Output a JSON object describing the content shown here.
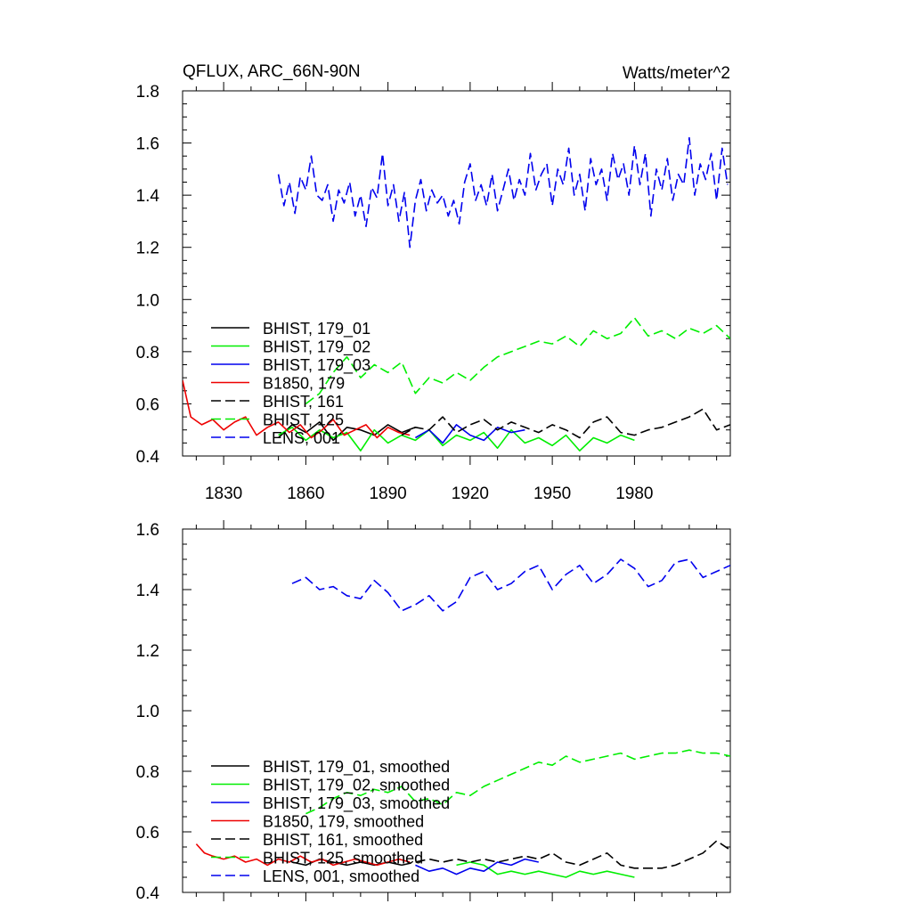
{
  "chart_data": [
    {
      "type": "line",
      "title": "QFLUX, ARC_66N-90N",
      "units": "Watts/meter^2",
      "xlim": [
        1815,
        2015
      ],
      "ylim": [
        0.4,
        1.8
      ],
      "xticks": [
        1830,
        1860,
        1890,
        1920,
        1950,
        1980
      ],
      "yticks": [
        0.4,
        0.6,
        0.8,
        1.0,
        1.2,
        1.4,
        1.6,
        1.8
      ],
      "ytick_labels": [
        "0.4",
        "0.6",
        "0.8",
        "1.0",
        "1.2",
        "1.4",
        "1.6",
        "1.8"
      ],
      "legend_position": "bottom-left",
      "series": [
        {
          "name": "BHIST, 179_01",
          "color": "#000000",
          "dash": "solid",
          "x": [
            1850,
            1855,
            1860,
            1865,
            1870,
            1875,
            1880,
            1885,
            1890,
            1895,
            1900
          ],
          "y": [
            0.47,
            0.52,
            0.49,
            0.53,
            0.46,
            0.51,
            0.5,
            0.48,
            0.52,
            0.49,
            0.51
          ]
        },
        {
          "name": "BHIST, 179_02",
          "color": "#00ee00",
          "dash": "solid",
          "x": [
            1850,
            1855,
            1860,
            1865,
            1870,
            1875,
            1880,
            1885,
            1890,
            1895,
            1900,
            1905,
            1910,
            1915,
            1920,
            1925,
            1930,
            1935,
            1940,
            1945,
            1950,
            1955,
            1960,
            1965,
            1970,
            1975,
            1980
          ],
          "y": [
            0.48,
            0.51,
            0.46,
            0.5,
            0.47,
            0.49,
            0.42,
            0.5,
            0.45,
            0.48,
            0.46,
            0.5,
            0.44,
            0.48,
            0.46,
            0.49,
            0.43,
            0.5,
            0.45,
            0.47,
            0.44,
            0.48,
            0.42,
            0.47,
            0.45,
            0.48,
            0.46
          ]
        },
        {
          "name": "BHIST, 179_03",
          "color": "#0000ee",
          "dash": "solid",
          "x": [
            1900,
            1905,
            1910,
            1915,
            1920,
            1925,
            1930,
            1935,
            1940
          ],
          "y": [
            0.47,
            0.5,
            0.45,
            0.52,
            0.48,
            0.46,
            0.51,
            0.49,
            0.5
          ]
        },
        {
          "name": "B1850, 179",
          "color": "#ee0000",
          "dash": "solid",
          "x": [
            1815,
            1818,
            1822,
            1826,
            1830,
            1834,
            1838,
            1842,
            1846,
            1850,
            1854,
            1858,
            1862,
            1866,
            1870,
            1874,
            1878,
            1882,
            1886,
            1890,
            1894,
            1898
          ],
          "y": [
            0.69,
            0.55,
            0.52,
            0.54,
            0.5,
            0.53,
            0.55,
            0.48,
            0.51,
            0.53,
            0.49,
            0.52,
            0.47,
            0.5,
            0.54,
            0.48,
            0.5,
            0.52,
            0.47,
            0.51,
            0.49,
            0.48
          ]
        },
        {
          "name": "BHIST, 161",
          "color": "#000000",
          "dash": "dashed",
          "x": [
            1895,
            1900,
            1905,
            1910,
            1915,
            1920,
            1925,
            1930,
            1935,
            1940,
            1945,
            1950,
            1955,
            1960,
            1965,
            1970,
            1975,
            1980,
            1985,
            1990,
            1995,
            2000,
            2005,
            2010,
            2015
          ],
          "y": [
            0.48,
            0.51,
            0.5,
            0.55,
            0.49,
            0.52,
            0.54,
            0.5,
            0.53,
            0.51,
            0.49,
            0.52,
            0.5,
            0.47,
            0.53,
            0.55,
            0.49,
            0.48,
            0.5,
            0.51,
            0.53,
            0.55,
            0.58,
            0.5,
            0.52
          ]
        },
        {
          "name": "BHIST, 125",
          "color": "#00ee00",
          "dash": "dashed",
          "x": [
            1860,
            1865,
            1870,
            1875,
            1880,
            1885,
            1890,
            1895,
            1900,
            1905,
            1910,
            1915,
            1920,
            1925,
            1930,
            1935,
            1940,
            1945,
            1950,
            1955,
            1960,
            1965,
            1970,
            1975,
            1980,
            1985,
            1990,
            1995,
            2000,
            2005,
            2010,
            2015
          ],
          "y": [
            0.6,
            0.64,
            0.72,
            0.78,
            0.7,
            0.75,
            0.72,
            0.76,
            0.64,
            0.7,
            0.68,
            0.72,
            0.69,
            0.74,
            0.78,
            0.8,
            0.82,
            0.84,
            0.83,
            0.86,
            0.82,
            0.88,
            0.85,
            0.87,
            0.93,
            0.86,
            0.88,
            0.85,
            0.89,
            0.87,
            0.9,
            0.85
          ]
        },
        {
          "name": "LENS, 001",
          "color": "#0000ee",
          "dash": "dashed",
          "x": [
            1850,
            1852,
            1854,
            1856,
            1858,
            1860,
            1862,
            1864,
            1866,
            1868,
            1870,
            1872,
            1874,
            1876,
            1878,
            1880,
            1882,
            1884,
            1886,
            1888,
            1890,
            1892,
            1894,
            1896,
            1898,
            1900,
            1902,
            1904,
            1906,
            1908,
            1910,
            1912,
            1914,
            1916,
            1918,
            1920,
            1922,
            1924,
            1926,
            1928,
            1930,
            1932,
            1934,
            1936,
            1938,
            1940,
            1942,
            1944,
            1946,
            1948,
            1950,
            1952,
            1954,
            1956,
            1958,
            1960,
            1962,
            1964,
            1966,
            1968,
            1970,
            1972,
            1974,
            1976,
            1978,
            1980,
            1982,
            1984,
            1986,
            1988,
            1990,
            1992,
            1994,
            1996,
            1998,
            2000,
            2002,
            2004,
            2006,
            2008,
            2010,
            2012,
            2014
          ],
          "y": [
            1.48,
            1.36,
            1.45,
            1.33,
            1.47,
            1.42,
            1.55,
            1.4,
            1.38,
            1.44,
            1.3,
            1.42,
            1.37,
            1.45,
            1.32,
            1.4,
            1.28,
            1.43,
            1.39,
            1.56,
            1.36,
            1.44,
            1.3,
            1.41,
            1.2,
            1.38,
            1.46,
            1.34,
            1.42,
            1.37,
            1.4,
            1.32,
            1.38,
            1.29,
            1.45,
            1.52,
            1.38,
            1.44,
            1.36,
            1.48,
            1.34,
            1.42,
            1.5,
            1.38,
            1.46,
            1.4,
            1.56,
            1.42,
            1.48,
            1.52,
            1.36,
            1.5,
            1.44,
            1.58,
            1.4,
            1.48,
            1.34,
            1.54,
            1.44,
            1.5,
            1.38,
            1.56,
            1.46,
            1.52,
            1.4,
            1.59,
            1.44,
            1.56,
            1.32,
            1.5,
            1.42,
            1.54,
            1.38,
            1.48,
            1.44,
            1.62,
            1.4,
            1.52,
            1.46,
            1.56,
            1.38,
            1.58,
            1.44
          ]
        }
      ]
    },
    {
      "type": "line",
      "xlim": [
        1815,
        2015
      ],
      "ylim": [
        0.4,
        1.6
      ],
      "yticks": [
        0.4,
        0.6,
        0.8,
        1.0,
        1.2,
        1.4,
        1.6
      ],
      "ytick_labels": [
        "0.4",
        "0.6",
        "0.8",
        "1.0",
        "1.2",
        "1.4",
        "1.6"
      ],
      "legend_position": "bottom-left",
      "series": [
        {
          "name": "BHIST, 179_01, smoothed",
          "color": "#000000",
          "dash": "solid",
          "x": [
            1855,
            1860,
            1865,
            1870,
            1875,
            1880,
            1885,
            1890,
            1895
          ],
          "y": [
            0.5,
            0.49,
            0.51,
            0.5,
            0.49,
            0.5,
            0.49,
            0.5,
            0.49
          ]
        },
        {
          "name": "BHIST, 179_02, smoothed",
          "color": "#00ee00",
          "dash": "solid",
          "x": [
            1915,
            1920,
            1925,
            1930,
            1935,
            1940,
            1945,
            1950,
            1955,
            1960,
            1965,
            1970,
            1975,
            1980
          ],
          "y": [
            0.49,
            0.5,
            0.49,
            0.46,
            0.47,
            0.46,
            0.47,
            0.46,
            0.45,
            0.47,
            0.46,
            0.47,
            0.46,
            0.45
          ]
        },
        {
          "name": "BHIST, 179_03, smoothed",
          "color": "#0000ee",
          "dash": "solid",
          "x": [
            1900,
            1905,
            1910,
            1915,
            1920,
            1925,
            1930,
            1935,
            1940,
            1945
          ],
          "y": [
            0.49,
            0.47,
            0.48,
            0.46,
            0.48,
            0.47,
            0.5,
            0.49,
            0.51,
            0.5
          ]
        },
        {
          "name": "B1850, 179, smoothed",
          "color": "#ee0000",
          "dash": "solid",
          "x": [
            1820,
            1823,
            1826,
            1830,
            1834,
            1838,
            1842,
            1846,
            1850,
            1854,
            1858,
            1862,
            1866,
            1870,
            1874,
            1878,
            1882,
            1886,
            1890,
            1894,
            1898
          ],
          "y": [
            0.56,
            0.53,
            0.52,
            0.51,
            0.52,
            0.5,
            0.51,
            0.49,
            0.51,
            0.5,
            0.52,
            0.5,
            0.51,
            0.49,
            0.5,
            0.51,
            0.5,
            0.49,
            0.5,
            0.51,
            0.5
          ]
        },
        {
          "name": "BHIST, 161, smoothed",
          "color": "#000000",
          "dash": "dashed",
          "x": [
            1895,
            1900,
            1905,
            1910,
            1915,
            1920,
            1925,
            1930,
            1935,
            1940,
            1945,
            1950,
            1955,
            1960,
            1965,
            1970,
            1975,
            1980,
            1985,
            1990,
            1995,
            2000,
            2005,
            2010,
            2015
          ],
          "y": [
            0.49,
            0.5,
            0.51,
            0.5,
            0.51,
            0.5,
            0.51,
            0.5,
            0.51,
            0.52,
            0.51,
            0.53,
            0.5,
            0.49,
            0.51,
            0.53,
            0.49,
            0.48,
            0.48,
            0.48,
            0.49,
            0.51,
            0.53,
            0.57,
            0.54
          ]
        },
        {
          "name": "BHIST, 125, smoothed",
          "color": "#00ee00",
          "dash": "dashed",
          "x": [
            1860,
            1865,
            1870,
            1875,
            1880,
            1885,
            1890,
            1895,
            1900,
            1905,
            1910,
            1915,
            1920,
            1925,
            1930,
            1935,
            1940,
            1945,
            1950,
            1955,
            1960,
            1965,
            1970,
            1975,
            1980,
            1985,
            1990,
            1995,
            2000,
            2005,
            2010,
            2015
          ],
          "y": [
            0.66,
            0.68,
            0.71,
            0.73,
            0.72,
            0.74,
            0.73,
            0.75,
            0.7,
            0.71,
            0.69,
            0.73,
            0.72,
            0.75,
            0.77,
            0.79,
            0.81,
            0.83,
            0.82,
            0.85,
            0.83,
            0.84,
            0.85,
            0.86,
            0.84,
            0.85,
            0.86,
            0.86,
            0.87,
            0.86,
            0.86,
            0.85
          ]
        },
        {
          "name": "LENS, 001, smoothed",
          "color": "#0000ee",
          "dash": "dashed",
          "x": [
            1855,
            1860,
            1865,
            1870,
            1875,
            1880,
            1885,
            1890,
            1895,
            1900,
            1905,
            1910,
            1915,
            1920,
            1925,
            1930,
            1935,
            1940,
            1945,
            1950,
            1955,
            1960,
            1965,
            1970,
            1975,
            1980,
            1985,
            1990,
            1995,
            2000,
            2005,
            2010,
            2015
          ],
          "y": [
            1.42,
            1.44,
            1.4,
            1.41,
            1.38,
            1.37,
            1.43,
            1.39,
            1.33,
            1.35,
            1.38,
            1.33,
            1.36,
            1.44,
            1.46,
            1.4,
            1.42,
            1.46,
            1.48,
            1.4,
            1.45,
            1.48,
            1.42,
            1.45,
            1.5,
            1.47,
            1.41,
            1.43,
            1.49,
            1.5,
            1.44,
            1.46,
            1.48
          ]
        }
      ]
    }
  ]
}
